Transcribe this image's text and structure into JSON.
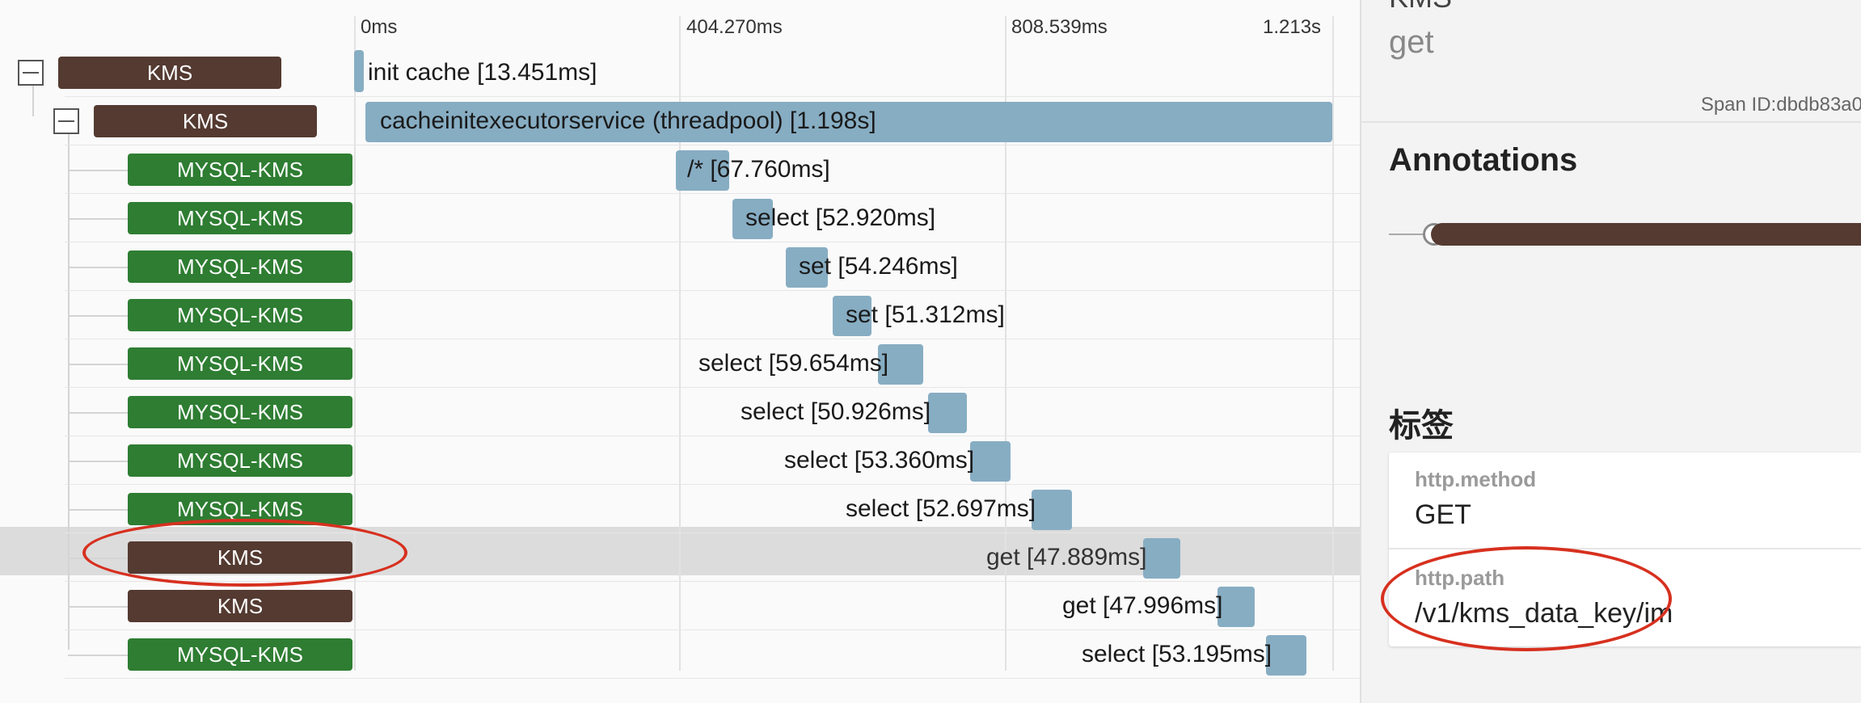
{
  "timeline": {
    "ticks": [
      "0ms",
      "404.270ms",
      "808.539ms",
      "1.213s"
    ]
  },
  "rows": [
    {
      "service": "KMS",
      "service_type": "kms",
      "toggle": true,
      "label": "init cache [13.451ms]"
    },
    {
      "service": "KMS",
      "service_type": "kms",
      "toggle": true,
      "label": "cacheinitexecutorservice (threadpool) [1.198s]"
    },
    {
      "service": "MYSQL-KMS",
      "service_type": "mysql",
      "label": "/* [67.760ms]"
    },
    {
      "service": "MYSQL-KMS",
      "service_type": "mysql",
      "label": "select [52.920ms]"
    },
    {
      "service": "MYSQL-KMS",
      "service_type": "mysql",
      "label": "set [54.246ms]"
    },
    {
      "service": "MYSQL-KMS",
      "service_type": "mysql",
      "label": "set [51.312ms]"
    },
    {
      "service": "MYSQL-KMS",
      "service_type": "mysql",
      "label": "select [59.654ms]"
    },
    {
      "service": "MYSQL-KMS",
      "service_type": "mysql",
      "label": "select [50.926ms]"
    },
    {
      "service": "MYSQL-KMS",
      "service_type": "mysql",
      "label": "select [53.360ms]"
    },
    {
      "service": "MYSQL-KMS",
      "service_type": "mysql",
      "label": "select [52.697ms]"
    },
    {
      "service": "KMS",
      "service_type": "kms",
      "label": "get [47.889ms]",
      "selected": true
    },
    {
      "service": "KMS",
      "service_type": "kms",
      "label": "get [47.996ms]"
    },
    {
      "service": "MYSQL-KMS",
      "service_type": "mysql",
      "label": "select [53.195ms]"
    }
  ],
  "detail": {
    "service_title": "KMS",
    "operation": "get",
    "span_id_label": "Span ID:",
    "span_id_value": "dbdb83a0",
    "annotations_heading": "Annotations",
    "tags_heading": "标签",
    "tags": [
      {
        "key": "http.method",
        "value": "GET"
      },
      {
        "key": "http.path",
        "value": "/v1/kms_data_key/im"
      }
    ]
  },
  "colors": {
    "kms_badge": "#543a31",
    "mysql_badge": "#2e7d32",
    "span_bar": "#87adc3",
    "annotation_circle": "#d7301f",
    "selected_row": "#dcdcdc"
  }
}
